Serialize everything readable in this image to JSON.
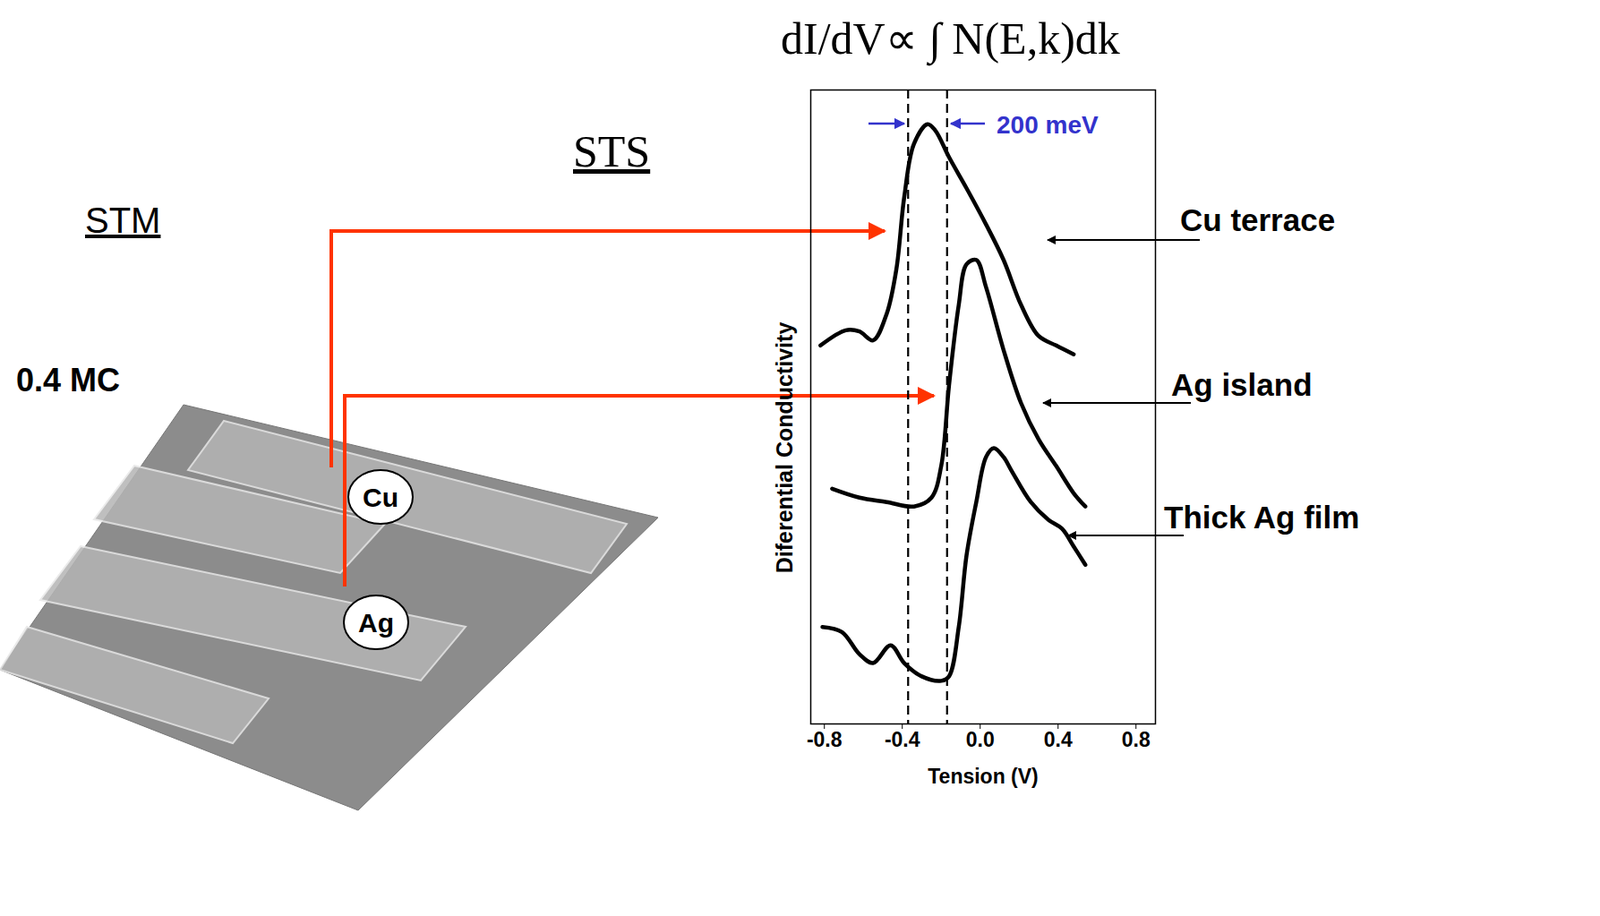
{
  "chart_data": {
    "type": "line",
    "title": "dI/dV∝ ∫ N(E,k)dk",
    "sts_title": "STS",
    "stm_image": {
      "title": "STM",
      "coverage": "0.4 MC",
      "labels": [
        "Cu",
        "Ag"
      ]
    },
    "x_label": "Tension (V)",
    "y_label": "Diferential Conductivity",
    "xlim": [
      -0.87,
      0.9
    ],
    "xticks": [
      -0.8,
      -0.4,
      {
        "value": 0,
        "label": "0.0"
      },
      0.4,
      0.8
    ],
    "ylim": [
      0,
      10
    ],
    "tick_labels": "x",
    "reference_lines": [
      -0.37,
      -0.17
    ],
    "annotations": [
      {
        "text": "200 meV",
        "color": "#3333cc"
      }
    ],
    "series": [
      {
        "name": "Cu terrace",
        "color": "#000000",
        "x": [
          -0.82,
          -0.69,
          -0.62,
          -0.55,
          -0.48,
          -0.43,
          -0.39,
          -0.34,
          -0.27,
          -0.23,
          -0.16,
          -0.07,
          0.03,
          0.12,
          0.21,
          0.3,
          0.39,
          0.48
        ],
        "values": [
          5.97,
          6.21,
          6.19,
          6.05,
          6.47,
          7.18,
          8.31,
          9.15,
          9.46,
          9.36,
          8.94,
          8.45,
          7.88,
          7.32,
          6.61,
          6.12,
          5.97,
          5.83
        ]
      },
      {
        "name": "Ag island",
        "color": "#000000",
        "x": [
          -0.76,
          -0.62,
          -0.48,
          -0.34,
          -0.25,
          -0.2,
          -0.16,
          -0.11,
          -0.07,
          -0.02,
          0.03,
          0.12,
          0.21,
          0.3,
          0.39,
          0.48,
          0.54
        ],
        "values": [
          3.71,
          3.57,
          3.5,
          3.43,
          3.57,
          4.07,
          5.34,
          6.61,
          7.25,
          7.32,
          6.89,
          5.9,
          5.06,
          4.49,
          4.07,
          3.64,
          3.43
        ]
      },
      {
        "name": "Thick Ag film",
        "color": "#000000",
        "x": [
          -0.81,
          -0.71,
          -0.62,
          -0.55,
          -0.46,
          -0.39,
          -0.3,
          -0.2,
          -0.16,
          -0.11,
          -0.07,
          -0.02,
          0.03,
          0.07,
          0.12,
          0.16,
          0.26,
          0.35,
          0.42,
          0.48,
          0.54
        ],
        "values": [
          1.53,
          1.45,
          1.1,
          0.96,
          1.24,
          0.96,
          0.75,
          0.68,
          0.75,
          1.53,
          2.66,
          3.5,
          4.21,
          4.35,
          4.21,
          4.0,
          3.5,
          3.22,
          3.08,
          2.8,
          2.51
        ]
      }
    ]
  }
}
